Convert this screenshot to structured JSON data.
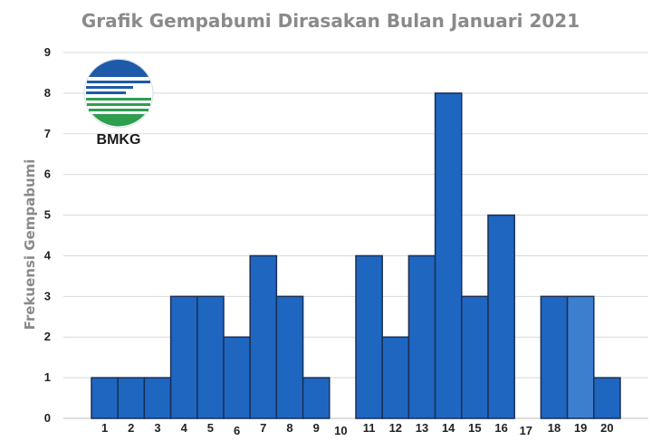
{
  "chart_data": {
    "type": "bar",
    "title": "Grafik Gempabumi Dirasakan Bulan Januari 2021",
    "xlabel": "",
    "ylabel": "Frekuensi Gempabumi",
    "categories": [
      "1",
      "2",
      "3",
      "4",
      "5",
      "6",
      "7",
      "8",
      "9",
      "10",
      "11",
      "12",
      "13",
      "14",
      "15",
      "16",
      "17",
      "18",
      "19",
      "20"
    ],
    "values": [
      1,
      1,
      1,
      3,
      3,
      2,
      4,
      3,
      1,
      0,
      4,
      2,
      4,
      8,
      3,
      5,
      0,
      3,
      3,
      1
    ],
    "ylim": [
      0,
      9
    ],
    "yticks": [
      0,
      1,
      2,
      3,
      4,
      5,
      6,
      7,
      8,
      9
    ],
    "grid": true,
    "colors": {
      "bar": "#1f66c1",
      "bar_highlight": "#3c7fcf",
      "bar_edge": "#1a2f55"
    },
    "highlight_index": 18
  },
  "logo": {
    "text": "BMKG",
    "icon": "bmkg-logo-icon"
  }
}
